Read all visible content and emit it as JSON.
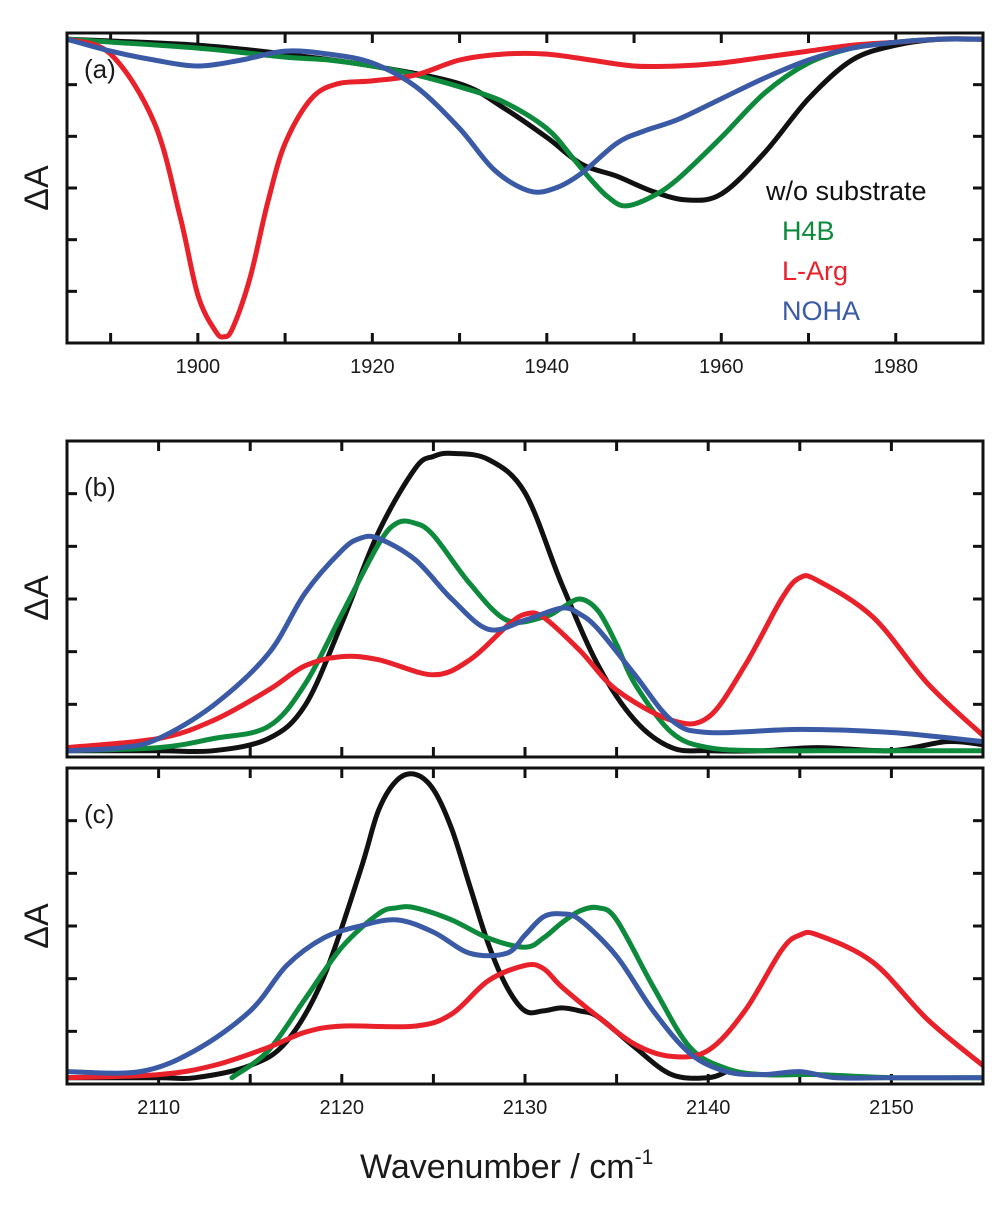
{
  "chart_data": [
    {
      "type": "line",
      "panel_label": "(a)",
      "ylabel": "ΔA",
      "xlim": [
        1885,
        1990
      ],
      "ylim": [
        -1.0,
        0.0
      ],
      "x_ticks": [
        1900,
        1920,
        1940,
        1960,
        1980
      ],
      "legend": {
        "placement": "right",
        "entries": [
          "w/o substrate",
          "H4B",
          "L-Arg",
          "NOHA"
        ]
      },
      "series": [
        {
          "name": "w/o substrate",
          "color": "#111111",
          "x": [
            1885,
            1900,
            1910,
            1920,
            1930,
            1935,
            1940,
            1944,
            1948,
            1952,
            1956,
            1960,
            1965,
            1970,
            1975,
            1980,
            1985,
            1990
          ],
          "y": [
            0.0,
            -0.02,
            -0.05,
            -0.09,
            -0.15,
            -0.23,
            -0.33,
            -0.42,
            -0.46,
            -0.51,
            -0.54,
            -0.52,
            -0.38,
            -0.2,
            -0.07,
            -0.02,
            0.0,
            0.0
          ]
        },
        {
          "name": "H4B",
          "color": "#0e8a3c",
          "x": [
            1885,
            1900,
            1910,
            1915,
            1920,
            1925,
            1930,
            1935,
            1940,
            1943,
            1945,
            1947,
            1949,
            1952,
            1955,
            1960,
            1965,
            1970,
            1975,
            1980,
            1985,
            1990
          ],
          "y": [
            0.0,
            -0.03,
            -0.06,
            -0.07,
            -0.09,
            -0.12,
            -0.16,
            -0.21,
            -0.3,
            -0.4,
            -0.47,
            -0.53,
            -0.56,
            -0.53,
            -0.47,
            -0.33,
            -0.18,
            -0.08,
            -0.03,
            -0.01,
            0.0,
            0.0
          ]
        },
        {
          "name": "L-Arg",
          "color": "#e8212a",
          "x": [
            1885,
            1890,
            1895,
            1898,
            1900,
            1902,
            1903,
            1904,
            1906,
            1908,
            1910,
            1913,
            1916,
            1920,
            1925,
            1930,
            1935,
            1940,
            1945,
            1950,
            1955,
            1960,
            1965,
            1970,
            1975,
            1980,
            1985,
            1990
          ],
          "y": [
            0.0,
            -0.05,
            -0.28,
            -0.6,
            -0.86,
            -0.98,
            -1.0,
            -0.97,
            -0.8,
            -0.55,
            -0.35,
            -0.2,
            -0.15,
            -0.14,
            -0.12,
            -0.07,
            -0.05,
            -0.05,
            -0.07,
            -0.09,
            -0.09,
            -0.08,
            -0.06,
            -0.04,
            -0.02,
            -0.01,
            0.0,
            0.0
          ]
        },
        {
          "name": "NOHA",
          "color": "#3a5aa6",
          "x": [
            1885,
            1890,
            1895,
            1900,
            1905,
            1910,
            1915,
            1920,
            1925,
            1930,
            1934,
            1938,
            1941,
            1944,
            1948,
            1951,
            1955,
            1960,
            1965,
            1970,
            1975,
            1980,
            1985,
            1990
          ],
          "y": [
            0.0,
            -0.04,
            -0.07,
            -0.09,
            -0.07,
            -0.04,
            -0.05,
            -0.08,
            -0.16,
            -0.3,
            -0.44,
            -0.51,
            -0.5,
            -0.45,
            -0.35,
            -0.31,
            -0.27,
            -0.2,
            -0.13,
            -0.07,
            -0.03,
            -0.01,
            0.0,
            0.0
          ]
        }
      ]
    },
    {
      "type": "line",
      "panel_label": "(b)",
      "ylabel": "ΔA",
      "xlim": [
        2105,
        2155
      ],
      "ylim": [
        0.0,
        1.0
      ],
      "series": [
        {
          "name": "w/o substrate",
          "color": "#111111",
          "x": [
            2105,
            2110,
            2113,
            2116,
            2118,
            2120,
            2122,
            2124,
            2125,
            2126,
            2128,
            2130,
            2132,
            2134,
            2136,
            2138,
            2140,
            2143,
            2146,
            2150,
            2153,
            2155
          ],
          "y": [
            0.0,
            0.0,
            0.0,
            0.04,
            0.15,
            0.42,
            0.72,
            0.93,
            0.97,
            0.98,
            0.96,
            0.85,
            0.55,
            0.28,
            0.1,
            0.01,
            0.0,
            0.0,
            0.01,
            0.0,
            0.03,
            0.02
          ]
        },
        {
          "name": "H4B",
          "color": "#0e8a3c",
          "x": [
            2105,
            2110,
            2113,
            2116,
            2118,
            2120,
            2122,
            2123,
            2124,
            2125,
            2127,
            2129,
            2131,
            2132,
            2133,
            2134,
            2135,
            2136,
            2138,
            2140,
            2143,
            2146,
            2150,
            2155
          ],
          "y": [
            0.0,
            0.01,
            0.04,
            0.08,
            0.22,
            0.45,
            0.68,
            0.75,
            0.75,
            0.71,
            0.55,
            0.43,
            0.44,
            0.47,
            0.5,
            0.46,
            0.35,
            0.22,
            0.06,
            0.01,
            0.0,
            0.0,
            0.0,
            0.0
          ]
        },
        {
          "name": "L-Arg",
          "color": "#e8212a",
          "x": [
            2105,
            2110,
            2113,
            2116,
            2118,
            2120,
            2122,
            2125,
            2127,
            2129,
            2130,
            2131,
            2133,
            2135,
            2138,
            2140,
            2142,
            2144,
            2145,
            2146,
            2149,
            2152,
            2155
          ],
          "y": [
            0.01,
            0.04,
            0.1,
            0.2,
            0.28,
            0.31,
            0.3,
            0.25,
            0.3,
            0.41,
            0.45,
            0.44,
            0.33,
            0.2,
            0.1,
            0.11,
            0.28,
            0.5,
            0.57,
            0.56,
            0.44,
            0.22,
            0.05
          ]
        },
        {
          "name": "NOHA",
          "color": "#3a5aa6",
          "x": [
            2105,
            2108,
            2110,
            2113,
            2116,
            2118,
            2120,
            2121,
            2122,
            2124,
            2126,
            2128,
            2130,
            2132,
            2133,
            2134,
            2136,
            2138,
            2140,
            2145,
            2150,
            2155
          ],
          "y": [
            0.0,
            0.01,
            0.04,
            0.15,
            0.32,
            0.52,
            0.66,
            0.7,
            0.7,
            0.63,
            0.5,
            0.4,
            0.43,
            0.47,
            0.45,
            0.4,
            0.25,
            0.1,
            0.06,
            0.07,
            0.06,
            0.03
          ]
        }
      ]
    },
    {
      "type": "line",
      "panel_label": "(c)",
      "ylabel": "ΔA",
      "xlabel": "Wavenumber / cm",
      "xlabel_sup": "-1",
      "xlim": [
        2105,
        2155
      ],
      "ylim": [
        0.0,
        1.0
      ],
      "x_ticks": [
        2110,
        2120,
        2130,
        2140,
        2150
      ],
      "series": [
        {
          "name": "w/o substrate",
          "color": "#111111",
          "x": [
            2105,
            2110,
            2112,
            2115,
            2117,
            2119,
            2121,
            2122,
            2123,
            2124,
            2125,
            2126,
            2127,
            2128,
            2129,
            2130,
            2131,
            2132,
            2133,
            2134,
            2136,
            2138,
            2140,
            2141
          ],
          "y": [
            0.0,
            0.0,
            0.0,
            0.04,
            0.12,
            0.33,
            0.68,
            0.88,
            0.98,
            1.0,
            0.95,
            0.82,
            0.63,
            0.44,
            0.3,
            0.22,
            0.22,
            0.23,
            0.22,
            0.2,
            0.1,
            0.01,
            0.0,
            0.02
          ]
        },
        {
          "name": "H4B",
          "color": "#0e8a3c",
          "x": [
            2114,
            2116,
            2118,
            2120,
            2122,
            2123,
            2124,
            2126,
            2128,
            2130,
            2131,
            2132,
            2133,
            2134,
            2135,
            2137,
            2139,
            2141,
            2143,
            2146,
            2150,
            2155
          ],
          "y": [
            0.0,
            0.09,
            0.26,
            0.43,
            0.54,
            0.56,
            0.56,
            0.52,
            0.46,
            0.43,
            0.46,
            0.51,
            0.55,
            0.56,
            0.52,
            0.3,
            0.1,
            0.03,
            0.01,
            0.01,
            0.0,
            0.0
          ]
        },
        {
          "name": "L-Arg",
          "color": "#e8212a",
          "x": [
            2105,
            2110,
            2113,
            2116,
            2118,
            2120,
            2124,
            2126,
            2128,
            2130,
            2131,
            2132,
            2134,
            2136,
            2138,
            2140,
            2142,
            2144,
            2145,
            2146,
            2149,
            2152,
            2155
          ],
          "y": [
            0.0,
            0.01,
            0.04,
            0.1,
            0.15,
            0.17,
            0.17,
            0.21,
            0.32,
            0.37,
            0.36,
            0.3,
            0.2,
            0.11,
            0.07,
            0.09,
            0.22,
            0.42,
            0.47,
            0.47,
            0.38,
            0.19,
            0.04
          ]
        },
        {
          "name": "NOHA",
          "color": "#3a5aa6",
          "x": [
            2105,
            2109,
            2112,
            2115,
            2117,
            2119,
            2121,
            2123,
            2125,
            2127,
            2129,
            2130,
            2131,
            2132,
            2133,
            2135,
            2137,
            2139,
            2141,
            2143,
            2145,
            2147,
            2150,
            2155
          ],
          "y": [
            0.02,
            0.02,
            0.09,
            0.22,
            0.37,
            0.46,
            0.5,
            0.52,
            0.48,
            0.41,
            0.41,
            0.47,
            0.53,
            0.54,
            0.52,
            0.4,
            0.22,
            0.08,
            0.02,
            0.01,
            0.02,
            0.0,
            0.0,
            0.0
          ]
        }
      ]
    }
  ]
}
